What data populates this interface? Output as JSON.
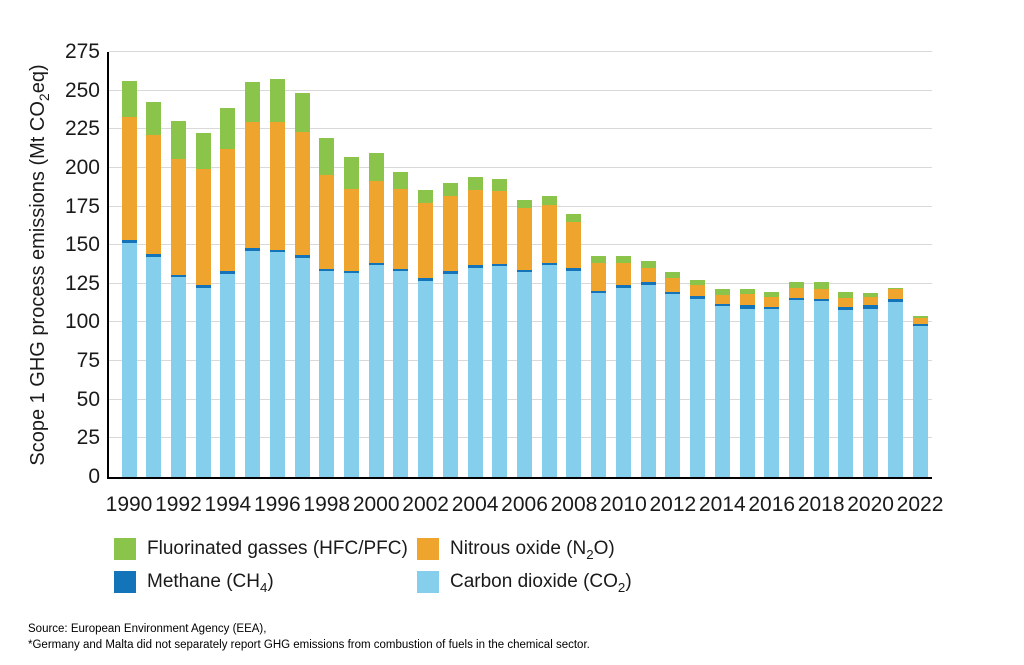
{
  "y_axis_title": {
    "pre": "Scope 1 GHG process emissions (Mt CO",
    "sub": "2",
    "post": "eq)"
  },
  "legend": {
    "items": [
      {
        "key": "fgas",
        "pre": "Fluorinated gasses (HFC/PFC)",
        "sub": "",
        "post": "",
        "color": "#8bc44a"
      },
      {
        "key": "n2o",
        "pre": "Nitrous oxide (N",
        "sub": "2",
        "post": "O)",
        "color": "#efa42d"
      },
      {
        "key": "ch4",
        "pre": "Methane (CH",
        "sub": "4",
        "post": ")",
        "color": "#1474ba"
      },
      {
        "key": "co2",
        "pre": "Carbon dioxide (CO",
        "sub": "2",
        "post": ")",
        "color": "#85ceec"
      }
    ]
  },
  "source": {
    "line1": "Source: European Environment Agency (EEA),",
    "line2": "*Germany and Malta did not separately report GHG emissions from combustion of fuels in the chemical sector."
  },
  "chart_data": {
    "type": "bar",
    "stacked": true,
    "title": "",
    "xlabel": "",
    "ylabel": "Scope 1 GHG process emissions (Mt CO2eq)",
    "ylim": [
      0,
      275
    ],
    "y_ticks": [
      0,
      25,
      50,
      75,
      100,
      125,
      150,
      175,
      200,
      225,
      250,
      275
    ],
    "grid": true,
    "legend_position": "bottom",
    "x": [
      1990,
      1991,
      1992,
      1993,
      1994,
      1995,
      1996,
      1997,
      1998,
      1999,
      2000,
      2001,
      2002,
      2003,
      2004,
      2005,
      2006,
      2007,
      2008,
      2009,
      2010,
      2011,
      2012,
      2013,
      2014,
      2015,
      2016,
      2017,
      2018,
      2019,
      2020,
      2021,
      2022
    ],
    "x_tick_labels": [
      "1990",
      "1992",
      "1994",
      "1996",
      "1998",
      "2000",
      "2002",
      "2004",
      "2006",
      "2008",
      "2010",
      "2012",
      "2014",
      "2016",
      "2018",
      "2020",
      "2022"
    ],
    "series": [
      {
        "key": "co2",
        "name": "Carbon dioxide (CO2)",
        "color": "#85ceec",
        "values": [
          151.5,
          142.5,
          129.5,
          122.5,
          131.5,
          146.5,
          145.5,
          142,
          133,
          132,
          137,
          133,
          127,
          131.5,
          135.5,
          136.5,
          132.5,
          137,
          133.5,
          119,
          122.5,
          124.5,
          118.5,
          115.5,
          110.5,
          109,
          108.5,
          114.5,
          114,
          108,
          109,
          113.5,
          97.5
        ]
      },
      {
        "key": "ch4",
        "name": "Methane (CH4)",
        "color": "#1474ba",
        "values": [
          2,
          2,
          1.5,
          1.5,
          1.5,
          1.5,
          1.5,
          1.5,
          1.5,
          1.5,
          1.5,
          1.5,
          1.5,
          1.5,
          1.5,
          1.5,
          1.5,
          1.5,
          1.5,
          1.5,
          1.5,
          1.5,
          1.5,
          1.5,
          1.5,
          2,
          1.5,
          1.5,
          1.5,
          2,
          2,
          2,
          1.5
        ]
      },
      {
        "key": "n2o",
        "name": "Nitrous oxide (N2O)",
        "color": "#efa42d",
        "values": [
          79.5,
          76.5,
          75,
          75.5,
          79.5,
          81.5,
          83,
          80,
          61,
          53,
          53,
          52,
          48.5,
          49,
          49,
          47,
          40,
          37.5,
          30,
          18,
          14.5,
          9,
          8.5,
          7,
          6,
          7.5,
          6.5,
          6.5,
          6,
          6,
          5.5,
          6,
          4
        ]
      },
      {
        "key": "fgas",
        "name": "Fluorinated gasses (HFC/PFC)",
        "color": "#8bc44a",
        "values": [
          23,
          21.5,
          24.5,
          23,
          26,
          26,
          27.5,
          25,
          24,
          20.5,
          18,
          11,
          9,
          8.5,
          8,
          8,
          5.5,
          6,
          5,
          4.5,
          4.5,
          4.5,
          4,
          3.5,
          3.5,
          3,
          3.5,
          4,
          4.5,
          3.5,
          2.5,
          1,
          1
        ]
      }
    ]
  }
}
